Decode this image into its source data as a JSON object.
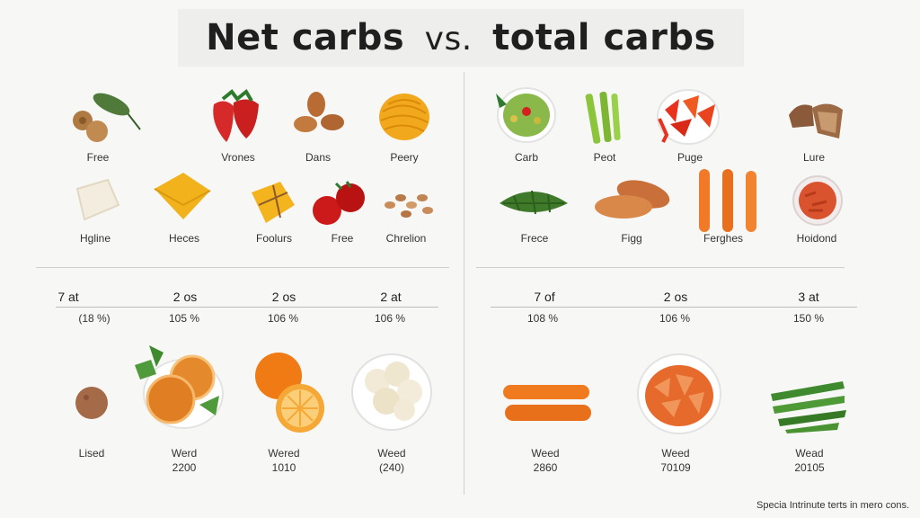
{
  "title": {
    "main": "Net carbs",
    "vs": "vs.",
    "rest": "total carbs"
  },
  "left": {
    "row1": [
      "Free",
      "Vrones",
      "Dans",
      "Peery"
    ],
    "row2": [
      "Hgline",
      "Heces",
      "Foolurs",
      "Free",
      "Chrelion"
    ],
    "stats": [
      "7 at",
      "2 os",
      "2 os",
      "2 at"
    ],
    "percents": [
      "(18 %)",
      "105 %",
      "106 %",
      "106 %"
    ],
    "bottom_labels": [
      "Lised",
      "Werd",
      "Wered",
      "Weed"
    ],
    "bottom_values": [
      "",
      "2200",
      "1010",
      "(240)"
    ]
  },
  "right": {
    "row1": [
      "Carb",
      "Peot",
      "Puge",
      "Lure"
    ],
    "row2": [
      "Frece",
      "Figg",
      "Ferghes",
      "Hoidond"
    ],
    "stats": [
      "7 of",
      "2 os",
      "3 at"
    ],
    "percents": [
      "108 %",
      "106 %",
      "150 %"
    ],
    "bottom_labels": [
      "Weed",
      "Weed",
      "Wead"
    ],
    "bottom_values": [
      "2860",
      "70109",
      "20105"
    ]
  },
  "footnote": "Specia Intrinute terts in mero cons."
}
